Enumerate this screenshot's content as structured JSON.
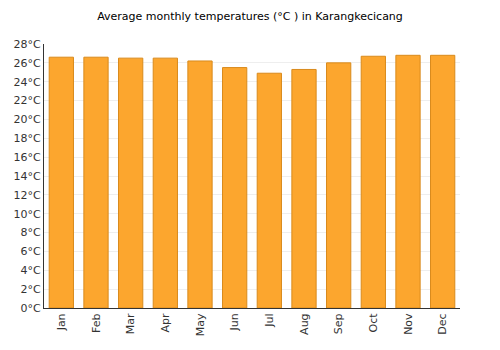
{
  "chart_data": {
    "type": "bar",
    "title": "Average monthly temperatures (°C ) in Karangkecicang",
    "categories": [
      "Jan",
      "Feb",
      "Mar",
      "Apr",
      "May",
      "Jun",
      "Jul",
      "Aug",
      "Sep",
      "Oct",
      "Nov",
      "Dec"
    ],
    "values": [
      26.6,
      26.6,
      26.5,
      26.5,
      26.2,
      25.5,
      24.9,
      25.3,
      26.0,
      26.7,
      26.8,
      26.8
    ],
    "color": "#fca62e",
    "ylim": [
      0,
      28
    ],
    "yticks": [
      {
        "value": 0,
        "label": "0°C"
      },
      {
        "value": 2,
        "label": "2°C"
      },
      {
        "value": 4,
        "label": "4°C"
      },
      {
        "value": 6,
        "label": "6°C"
      },
      {
        "value": 8,
        "label": "8°C"
      },
      {
        "value": 10,
        "label": "10°C"
      },
      {
        "value": 12,
        "label": "12°C"
      },
      {
        "value": 14,
        "label": "14°C"
      },
      {
        "value": 16,
        "label": "16°C"
      },
      {
        "value": 18,
        "label": "18°C"
      },
      {
        "value": 20,
        "label": "20°C"
      },
      {
        "value": 22,
        "label": "22°C"
      },
      {
        "value": 24,
        "label": "24°C"
      },
      {
        "value": 26,
        "label": "26°C"
      },
      {
        "value": 28,
        "label": "28°C"
      }
    ],
    "grid": true
  }
}
